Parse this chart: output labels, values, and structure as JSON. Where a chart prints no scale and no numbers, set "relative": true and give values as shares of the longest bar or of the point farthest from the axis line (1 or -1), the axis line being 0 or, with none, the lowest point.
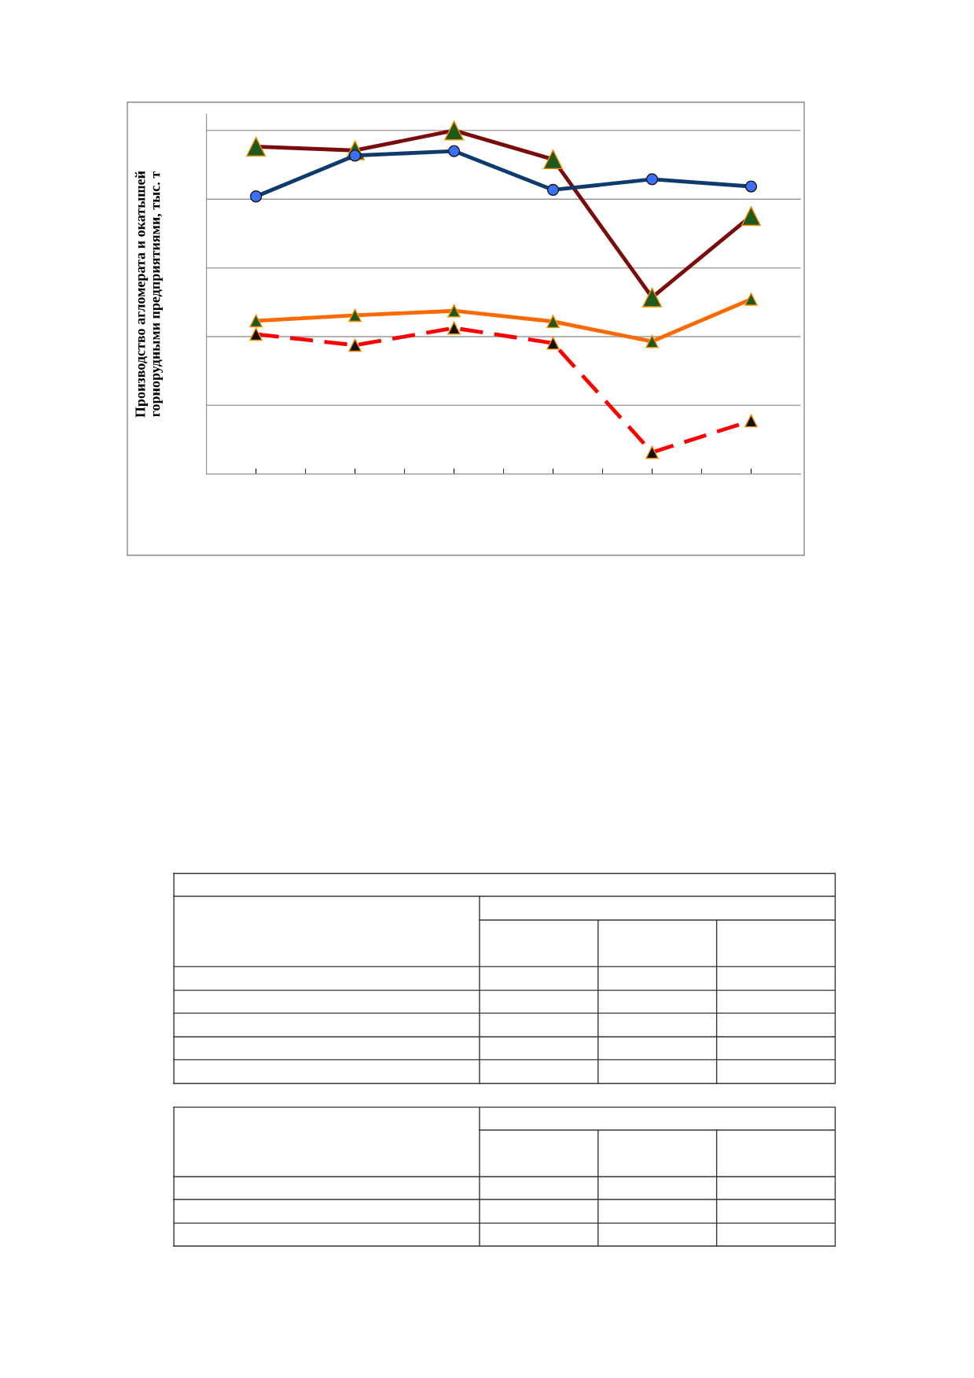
{
  "chart_data": {
    "type": "line",
    "ylabel": "Производство агломерата и окатышей\nгорнорудными предприятиями, тыс. т",
    "categories": [
      null,
      null,
      null,
      null,
      null,
      null
    ],
    "relative": true,
    "grid": "y",
    "line_style": "solid",
    "series": [
      {
        "color": "#7b0c0c",
        "marker": "triangle",
        "values": [
          0.953,
          0.942,
          1,
          0.916,
          0.514,
          0.751
        ]
      },
      {
        "color": "#0d3b6e",
        "marker": "circle",
        "values": [
          0.808,
          0.927,
          0.94,
          0.827,
          0.858,
          0.837
        ]
      },
      {
        "color": "#ff6a00",
        "marker": "triangle",
        "values": [
          0.446,
          0.462,
          0.475,
          0.444,
          0.386,
          0.509
        ]
      },
      {
        "color": "#ff0000",
        "marker": "triangle",
        "line_style": "dashed",
        "values": [
          0.407,
          0.375,
          0.425,
          0.381,
          0.063,
          0.155
        ]
      }
    ]
  }
}
